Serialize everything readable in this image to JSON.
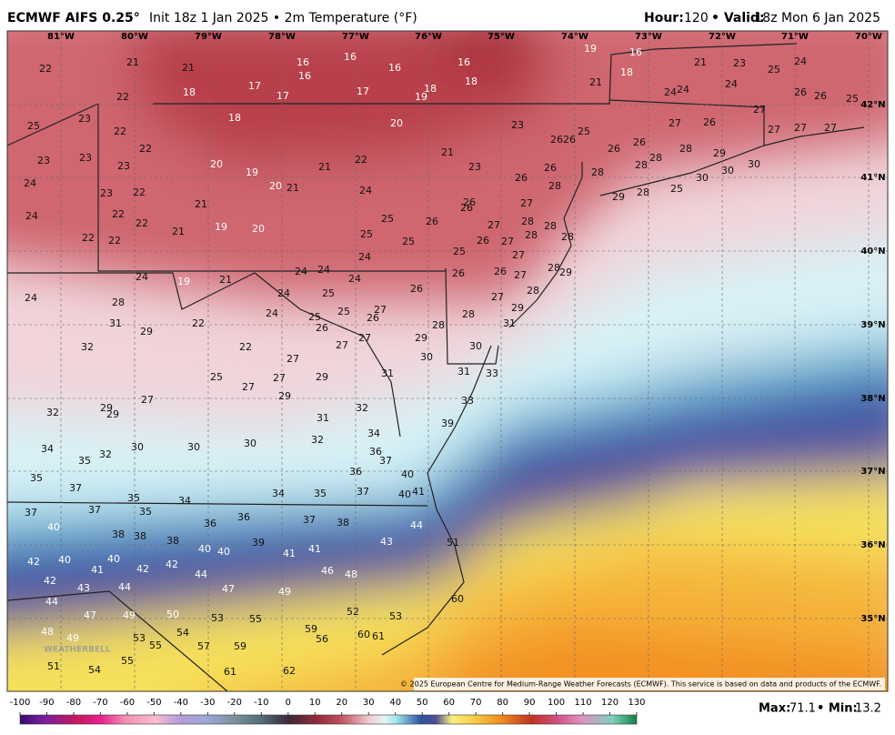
{
  "header": {
    "title": "ECMWF AIFS 0.25°",
    "subtitle": "Init 18z 1 Jan 2025 • 2m Temperature (°F)",
    "hour_label": "Hour:",
    "hour": 120,
    "valid_label": "• Valid:",
    "valid": "18z Mon 6 Jan 2025"
  },
  "map": {
    "longitudes": [
      "81°W",
      "80°W",
      "79°W",
      "78°W",
      "77°W",
      "76°W",
      "75°W",
      "74°W",
      "73°W",
      "72°W",
      "71°W",
      "70°W"
    ],
    "latitudes": [
      "42°N",
      "41°N",
      "40°N",
      "39°N",
      "38°N",
      "37°N",
      "36°N",
      "35°N"
    ],
    "temperatures": [
      22,
      21,
      21,
      18,
      22,
      17,
      17,
      16,
      16,
      16,
      17,
      16,
      19,
      18,
      16,
      18,
      19,
      21,
      18,
      16,
      21,
      23,
      25,
      24,
      24,
      24,
      24,
      26,
      26,
      25,
      25,
      23,
      22,
      18,
      20,
      23,
      26,
      26,
      25,
      27,
      27,
      26,
      27,
      27,
      27,
      23,
      23,
      22,
      23,
      20,
      19,
      21,
      22,
      21,
      23,
      26,
      26,
      28,
      29,
      24,
      23,
      22,
      21,
      20,
      21,
      24,
      26,
      26,
      28,
      28,
      28,
      28,
      25,
      30,
      30,
      30,
      24,
      22,
      22,
      21,
      19,
      20,
      25,
      26,
      26,
      26,
      27,
      29,
      28,
      22,
      22,
      25,
      25,
      26,
      27,
      28,
      28,
      28,
      28,
      27,
      27,
      24,
      25,
      24,
      19,
      21,
      24,
      24,
      24,
      26,
      26,
      27,
      28,
      29,
      24,
      28,
      24,
      25,
      24,
      31,
      29,
      22,
      25,
      25,
      26,
      26,
      27,
      26,
      27,
      28,
      28,
      29,
      31,
      32,
      22,
      27,
      27,
      27,
      29,
      28,
      30,
      30,
      25,
      27,
      27,
      29,
      31,
      31,
      33,
      27,
      29,
      32,
      29,
      29,
      31,
      32,
      33,
      39,
      34,
      34,
      35,
      32,
      30,
      30,
      30,
      32,
      36,
      37,
      35,
      36,
      40,
      37,
      35,
      34,
      34,
      35,
      37,
      40,
      41,
      37,
      37,
      35,
      36,
      36,
      37,
      38,
      44,
      40,
      38,
      38,
      38,
      40,
      40,
      39,
      41,
      41,
      43,
      51,
      42,
      40,
      41,
      40,
      42,
      42,
      44,
      46,
      48,
      42,
      43,
      44,
      47,
      49,
      60,
      44,
      47,
      49,
      50,
      53,
      55,
      52,
      53,
      54,
      59,
      56,
      48,
      49,
      53,
      55,
      57,
      59,
      60,
      61,
      51,
      54,
      55,
      61,
      62
    ],
    "attribution": "© 2025 European Centre for Medium-Range Weather Forecasts (ECMWF). This service is based on data and products of the ECMWF.",
    "logo": "WEATHERBELL"
  },
  "colorbar": {
    "range": [
      -100,
      130
    ],
    "ticks": [
      -100,
      -90,
      -80,
      -70,
      -60,
      -50,
      -40,
      -30,
      -20,
      -10,
      0,
      10,
      20,
      30,
      40,
      50,
      60,
      70,
      80,
      90,
      100,
      110,
      120,
      130
    ]
  },
  "footer": {
    "max_label": "Max:",
    "max": 71.1,
    "min_label": "• Min:",
    "min": 13.2
  }
}
